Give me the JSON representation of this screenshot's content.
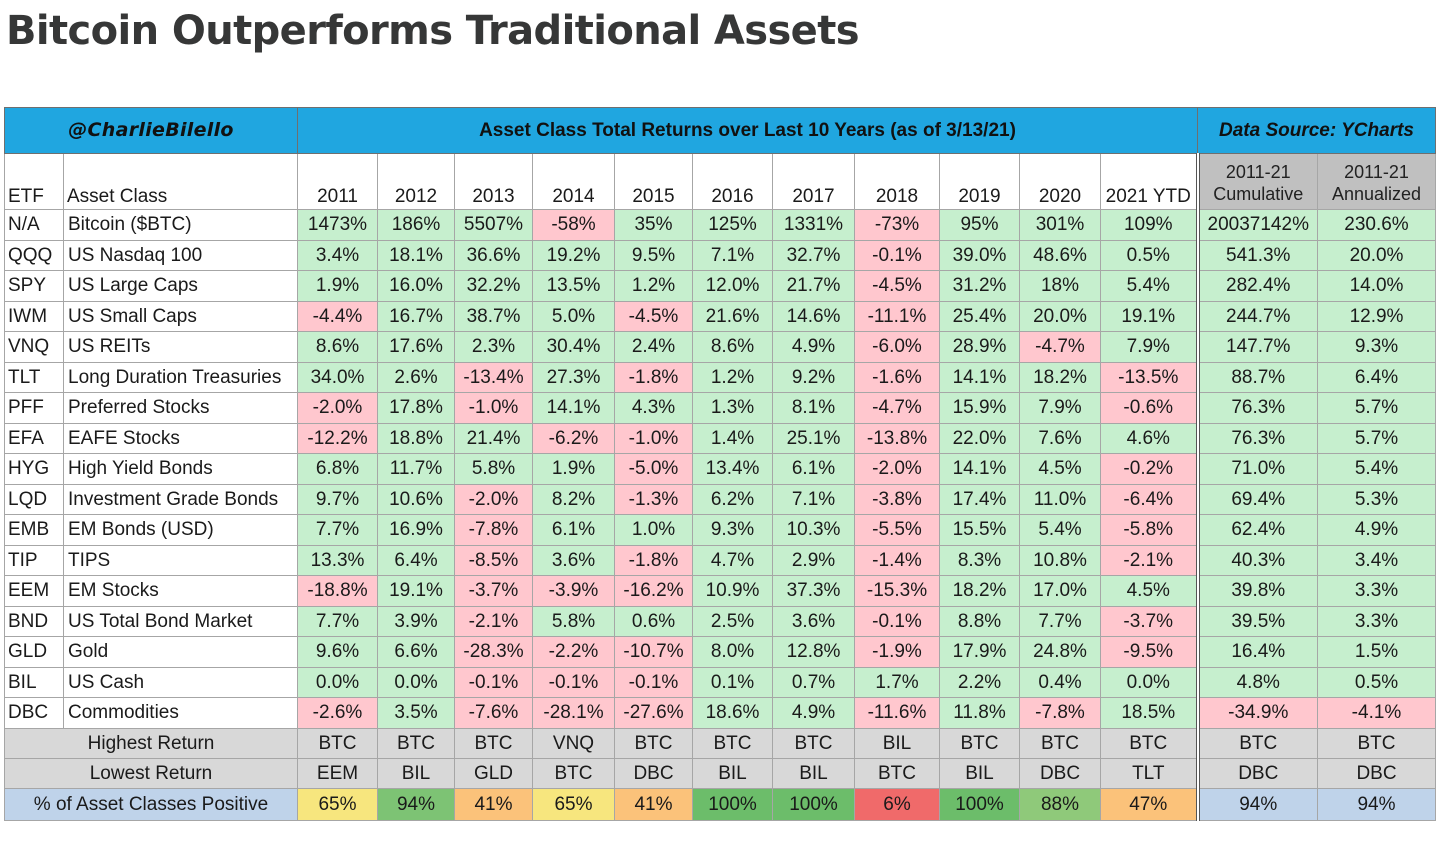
{
  "title": "Bitcoin Outperforms Traditional Assets",
  "banner": {
    "author": "@CharlieBilello",
    "title": "Asset Class Total Returns over Last 10 Years (as of 3/13/21)",
    "source": "Data Source: YCharts"
  },
  "colors": {
    "banner": "#20a6e0",
    "positive": "#c6efce",
    "negative": "#ffc7ce",
    "summary_gray": "#d8d8d8"
  },
  "chart_data": {
    "type": "table",
    "title": "Asset Class Total Returns over Last 10 Years (as of 3/13/21)",
    "columns": [
      "ETF",
      "Asset Class",
      "2011",
      "2012",
      "2013",
      "2014",
      "2015",
      "2016",
      "2017",
      "2018",
      "2019",
      "2020",
      "2021 YTD",
      "2011-21 Cumulative",
      "2011-21 Annualized"
    ],
    "header_labels": {
      "etf": "ETF",
      "asset_class": "Asset Class",
      "years": [
        "2011",
        "2012",
        "2013",
        "2014",
        "2015",
        "2016",
        "2017",
        "2018",
        "2019",
        "2020",
        "2021 YTD"
      ],
      "cumulative": [
        "2011-21",
        "Cumulative"
      ],
      "annualized": [
        "2011-21",
        "Annualized"
      ]
    },
    "rows": [
      {
        "etf": "N/A",
        "name": "Bitcoin ($BTC)",
        "values": [
          "1473%",
          "186%",
          "5507%",
          "-58%",
          "35%",
          "125%",
          "1331%",
          "-73%",
          "95%",
          "301%",
          "109%"
        ],
        "cumulative": "20037142%",
        "annualized": "230.6%"
      },
      {
        "etf": "QQQ",
        "name": "US Nasdaq 100",
        "values": [
          "3.4%",
          "18.1%",
          "36.6%",
          "19.2%",
          "9.5%",
          "7.1%",
          "32.7%",
          "-0.1%",
          "39.0%",
          "48.6%",
          "0.5%"
        ],
        "cumulative": "541.3%",
        "annualized": "20.0%"
      },
      {
        "etf": "SPY",
        "name": "US Large Caps",
        "values": [
          "1.9%",
          "16.0%",
          "32.2%",
          "13.5%",
          "1.2%",
          "12.0%",
          "21.7%",
          "-4.5%",
          "31.2%",
          "18%",
          "5.4%"
        ],
        "cumulative": "282.4%",
        "annualized": "14.0%"
      },
      {
        "etf": "IWM",
        "name": "US Small Caps",
        "values": [
          "-4.4%",
          "16.7%",
          "38.7%",
          "5.0%",
          "-4.5%",
          "21.6%",
          "14.6%",
          "-11.1%",
          "25.4%",
          "20.0%",
          "19.1%"
        ],
        "cumulative": "244.7%",
        "annualized": "12.9%"
      },
      {
        "etf": "VNQ",
        "name": "US REITs",
        "values": [
          "8.6%",
          "17.6%",
          "2.3%",
          "30.4%",
          "2.4%",
          "8.6%",
          "4.9%",
          "-6.0%",
          "28.9%",
          "-4.7%",
          "7.9%"
        ],
        "cumulative": "147.7%",
        "annualized": "9.3%"
      },
      {
        "etf": "TLT",
        "name": "Long Duration Treasuries",
        "values": [
          "34.0%",
          "2.6%",
          "-13.4%",
          "27.3%",
          "-1.8%",
          "1.2%",
          "9.2%",
          "-1.6%",
          "14.1%",
          "18.2%",
          "-13.5%"
        ],
        "cumulative": "88.7%",
        "annualized": "6.4%"
      },
      {
        "etf": "PFF",
        "name": "Preferred Stocks",
        "values": [
          "-2.0%",
          "17.8%",
          "-1.0%",
          "14.1%",
          "4.3%",
          "1.3%",
          "8.1%",
          "-4.7%",
          "15.9%",
          "7.9%",
          "-0.6%"
        ],
        "cumulative": "76.3%",
        "annualized": "5.7%"
      },
      {
        "etf": "EFA",
        "name": "EAFE Stocks",
        "values": [
          "-12.2%",
          "18.8%",
          "21.4%",
          "-6.2%",
          "-1.0%",
          "1.4%",
          "25.1%",
          "-13.8%",
          "22.0%",
          "7.6%",
          "4.6%"
        ],
        "cumulative": "76.3%",
        "annualized": "5.7%"
      },
      {
        "etf": "HYG",
        "name": "High Yield Bonds",
        "values": [
          "6.8%",
          "11.7%",
          "5.8%",
          "1.9%",
          "-5.0%",
          "13.4%",
          "6.1%",
          "-2.0%",
          "14.1%",
          "4.5%",
          "-0.2%"
        ],
        "cumulative": "71.0%",
        "annualized": "5.4%"
      },
      {
        "etf": "LQD",
        "name": "Investment Grade Bonds",
        "values": [
          "9.7%",
          "10.6%",
          "-2.0%",
          "8.2%",
          "-1.3%",
          "6.2%",
          "7.1%",
          "-3.8%",
          "17.4%",
          "11.0%",
          "-6.4%"
        ],
        "cumulative": "69.4%",
        "annualized": "5.3%"
      },
      {
        "etf": "EMB",
        "name": "EM Bonds (USD)",
        "values": [
          "7.7%",
          "16.9%",
          "-7.8%",
          "6.1%",
          "1.0%",
          "9.3%",
          "10.3%",
          "-5.5%",
          "15.5%",
          "5.4%",
          "-5.8%"
        ],
        "cumulative": "62.4%",
        "annualized": "4.9%"
      },
      {
        "etf": "TIP",
        "name": "TIPS",
        "values": [
          "13.3%",
          "6.4%",
          "-8.5%",
          "3.6%",
          "-1.8%",
          "4.7%",
          "2.9%",
          "-1.4%",
          "8.3%",
          "10.8%",
          "-2.1%"
        ],
        "cumulative": "40.3%",
        "annualized": "3.4%"
      },
      {
        "etf": "EEM",
        "name": "EM Stocks",
        "values": [
          "-18.8%",
          "19.1%",
          "-3.7%",
          "-3.9%",
          "-16.2%",
          "10.9%",
          "37.3%",
          "-15.3%",
          "18.2%",
          "17.0%",
          "4.5%"
        ],
        "cumulative": "39.8%",
        "annualized": "3.3%"
      },
      {
        "etf": "BND",
        "name": "US Total Bond Market",
        "values": [
          "7.7%",
          "3.9%",
          "-2.1%",
          "5.8%",
          "0.6%",
          "2.5%",
          "3.6%",
          "-0.1%",
          "8.8%",
          "7.7%",
          "-3.7%"
        ],
        "cumulative": "39.5%",
        "annualized": "3.3%"
      },
      {
        "etf": "GLD",
        "name": "Gold",
        "values": [
          "9.6%",
          "6.6%",
          "-28.3%",
          "-2.2%",
          "-10.7%",
          "8.0%",
          "12.8%",
          "-1.9%",
          "17.9%",
          "24.8%",
          "-9.5%"
        ],
        "cumulative": "16.4%",
        "annualized": "1.5%"
      },
      {
        "etf": "BIL",
        "name": "US Cash",
        "values": [
          "0.0%",
          "0.0%",
          "-0.1%",
          "-0.1%",
          "-0.1%",
          "0.1%",
          "0.7%",
          "1.7%",
          "2.2%",
          "0.4%",
          "0.0%"
        ],
        "cumulative": "4.8%",
        "annualized": "0.5%"
      },
      {
        "etf": "DBC",
        "name": "Commodities",
        "values": [
          "-2.6%",
          "3.5%",
          "-7.6%",
          "-28.1%",
          "-27.6%",
          "18.6%",
          "4.9%",
          "-11.6%",
          "11.8%",
          "-7.8%",
          "18.5%"
        ],
        "cumulative": "-34.9%",
        "annualized": "-4.1%"
      }
    ],
    "summary": {
      "highest": {
        "label": "Highest Return",
        "values": [
          "BTC",
          "BTC",
          "BTC",
          "VNQ",
          "BTC",
          "BTC",
          "BTC",
          "BIL",
          "BTC",
          "BTC",
          "BTC"
        ],
        "cumulative": "BTC",
        "annualized": "BTC"
      },
      "lowest": {
        "label": "Lowest Return",
        "values": [
          "EEM",
          "BIL",
          "GLD",
          "BTC",
          "DBC",
          "BIL",
          "BIL",
          "BTC",
          "BIL",
          "DBC",
          "TLT"
        ],
        "cumulative": "DBC",
        "annualized": "DBC"
      },
      "positive": {
        "label": "% of Asset Classes Positive",
        "values": [
          "65%",
          "94%",
          "41%",
          "65%",
          "41%",
          "100%",
          "100%",
          "6%",
          "100%",
          "88%",
          "47%"
        ],
        "colors": [
          "#f7e67e",
          "#7dc374",
          "#fbc27a",
          "#f7e67e",
          "#fbc27a",
          "#6cbd6a",
          "#6cbd6a",
          "#f06a6a",
          "#6cbd6a",
          "#8fc97a",
          "#fbc27a"
        ],
        "label_color": "#bfd3ea",
        "cumulative": "94%",
        "annualized": "94%"
      }
    }
  }
}
